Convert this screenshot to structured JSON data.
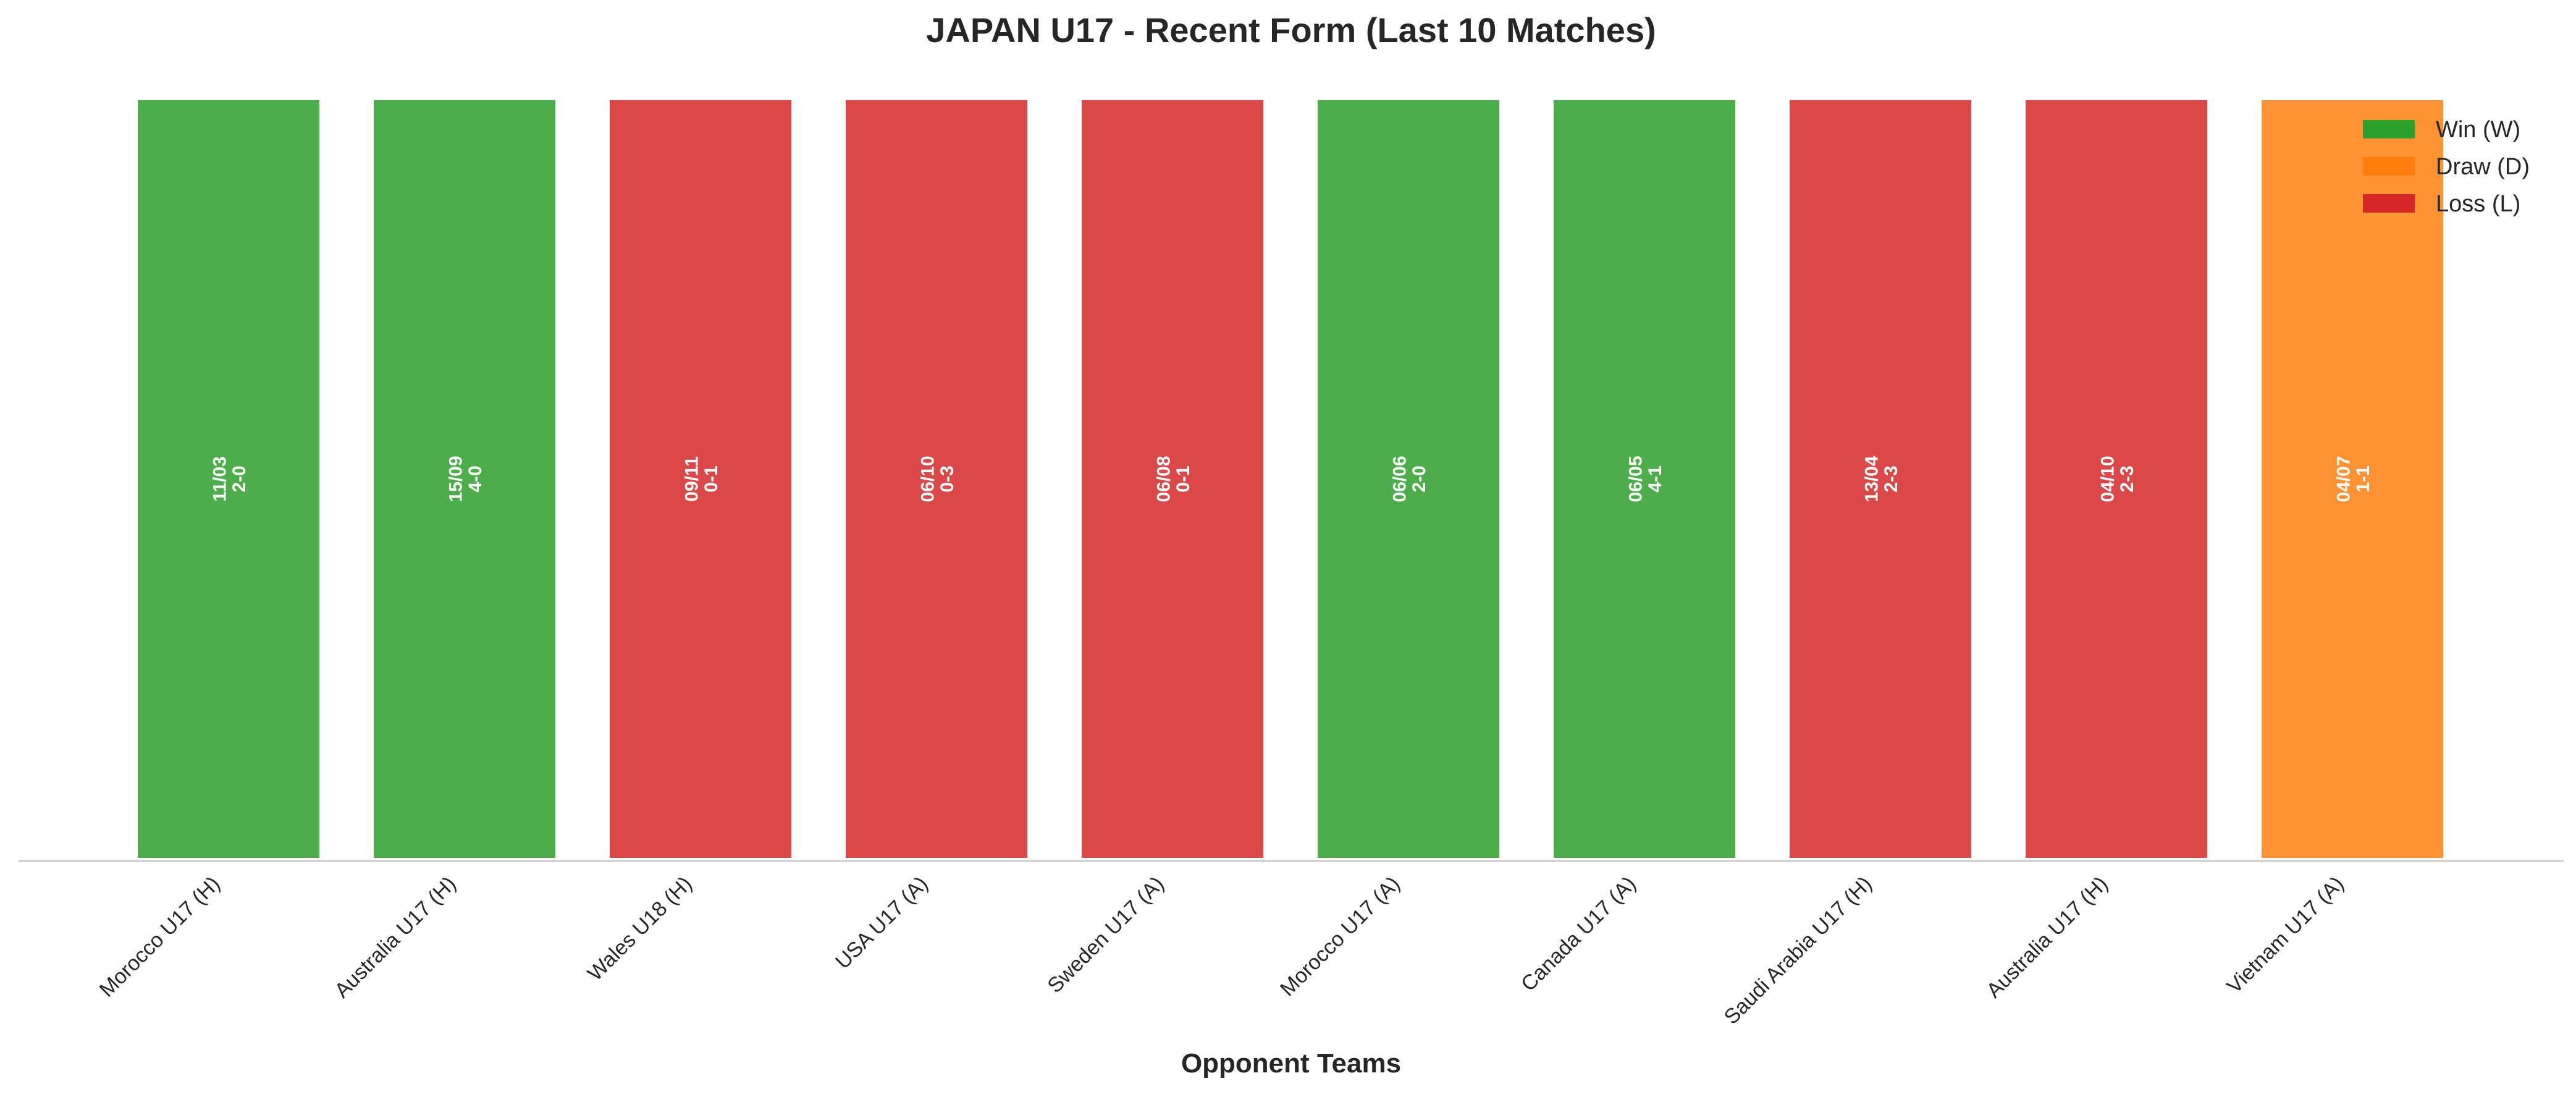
{
  "chart_data": {
    "type": "bar",
    "title": "JAPAN U17 - Recent Form (Last 10 Matches)",
    "xlabel": "Opponent Teams",
    "ylabel": "",
    "grid": false,
    "legend_placement": "top-right",
    "categories": [
      "Morocco U17 (H)",
      "Australia U17 (H)",
      "Wales U18 (H)",
      "USA U17 (A)",
      "Sweden U17 (A)",
      "Morocco U17 (A)",
      "Canada U17 (A)",
      "Saudi Arabia U17 (H)",
      "Australia U17 (H)",
      "Vietnam U17 (A)"
    ],
    "values": [
      1,
      1,
      1,
      1,
      1,
      1,
      1,
      1,
      1,
      1
    ],
    "results": [
      "W",
      "W",
      "L",
      "L",
      "L",
      "W",
      "W",
      "L",
      "L",
      "D"
    ],
    "dates": [
      "11/03",
      "15/09",
      "09/11",
      "06/10",
      "06/08",
      "06/06",
      "06/05",
      "13/04",
      "04/10",
      "04/07"
    ],
    "scores": [
      "2-0",
      "4-0",
      "0-1",
      "0-3",
      "0-1",
      "2-0",
      "4-1",
      "2-3",
      "2-3",
      "1-1"
    ],
    "colors": {
      "W": "#2ca02c",
      "D": "#ff7f0e",
      "L": "#d62728"
    },
    "legend": [
      {
        "key": "W",
        "label": "Win (W)"
      },
      {
        "key": "D",
        "label": "Draw (D)"
      },
      {
        "key": "L",
        "label": "Loss (L)"
      }
    ]
  }
}
